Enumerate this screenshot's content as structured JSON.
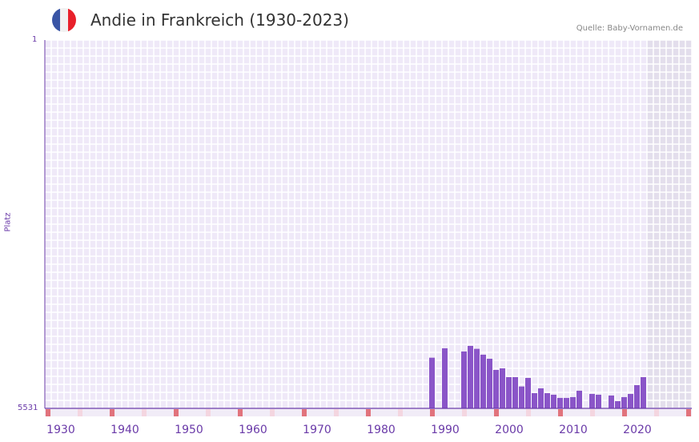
{
  "header": {
    "title": "Andie in Frankreich (1930-2023)",
    "source": "Quelle: Baby-Vornamen.de",
    "flag_colors": [
      "#3a55a5",
      "#f1f1f1",
      "#e8202a"
    ]
  },
  "chart_data": {
    "type": "bar",
    "title": "Andie in Frankreich (1930-2023)",
    "ylabel": "Platz",
    "ylim": [
      5531,
      1
    ],
    "y_ticks": [
      "1",
      "5531"
    ],
    "x_ticks": [
      "1930",
      "1940",
      "1950",
      "1960",
      "1970",
      "1980",
      "1990",
      "2000",
      "2010",
      "2020"
    ],
    "xlim": [
      1928,
      2028
    ],
    "forecast_from": 2022,
    "bar_color": "#8a55c8",
    "years": [
      1988,
      1990,
      1993,
      1994,
      1995,
      1996,
      1997,
      1998,
      1999,
      2000,
      2001,
      2002,
      2003,
      2004,
      2005,
      2006,
      2007,
      2008,
      2009,
      2010,
      2011,
      2013,
      2014,
      2016,
      2017,
      2018,
      2019,
      2020,
      2021
    ],
    "ranks": [
      4770,
      4629,
      4677,
      4593,
      4637,
      4725,
      4786,
      4954,
      4930,
      5062,
      5062,
      5202,
      5074,
      5302,
      5230,
      5302,
      5326,
      5374,
      5374,
      5362,
      5266,
      5314,
      5326,
      5338,
      5422,
      5362,
      5314,
      5182,
      5062
    ]
  }
}
